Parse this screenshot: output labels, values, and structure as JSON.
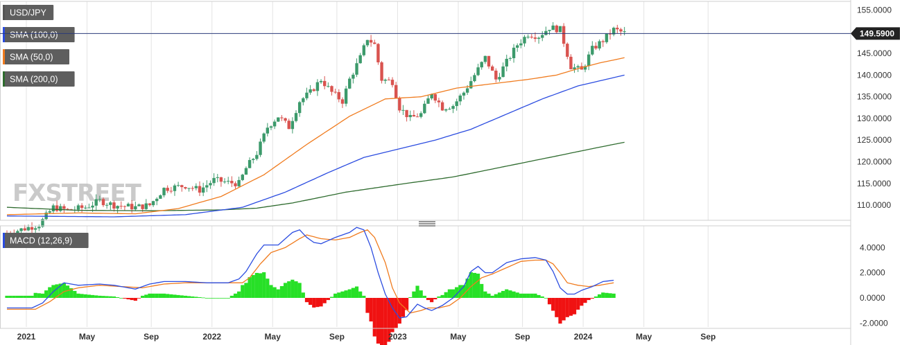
{
  "chart_data": [
    {
      "type": "candlestick",
      "title": "USD/JPY",
      "legend": [
        {
          "label": "USD/JPY",
          "color": "#555555"
        },
        {
          "label": "SMA (100,0)",
          "color": "#2b4ce0"
        },
        {
          "label": "SMA (50,0)",
          "color": "#f07b1e"
        },
        {
          "label": "SMA (200,0)",
          "color": "#2e6b2e"
        }
      ],
      "ylim": [
        106.5,
        157.0
      ],
      "yticks": [
        "155.0000",
        "150.0000",
        "145.0000",
        "140.0000",
        "135.0000",
        "130.0000",
        "125.0000",
        "120.0000",
        "115.0000",
        "110.0000"
      ],
      "ytick_values": [
        155,
        150,
        145,
        140,
        135,
        130,
        125,
        120,
        115,
        110
      ],
      "last_price": "149.5900",
      "last_price_value": 149.59,
      "price_keypoints": [
        [
          0,
          103.5
        ],
        [
          9,
          105.5
        ],
        [
          13,
          109.5
        ],
        [
          17,
          108.8
        ],
        [
          22,
          109.5
        ],
        [
          26,
          111.0
        ],
        [
          30,
          110.0
        ],
        [
          36,
          109.5
        ],
        [
          40,
          110.0
        ],
        [
          44,
          113.8
        ],
        [
          50,
          114.5
        ],
        [
          54,
          113.5
        ],
        [
          58,
          115.8
        ],
        [
          62,
          115.2
        ],
        [
          65,
          115.0
        ],
        [
          67,
          118.5
        ],
        [
          70,
          122.0
        ],
        [
          73,
          128.0
        ],
        [
          76,
          130.5
        ],
        [
          79,
          128.0
        ],
        [
          82,
          134.0
        ],
        [
          85,
          136.0
        ],
        [
          88,
          139.0
        ],
        [
          91,
          136.0
        ],
        [
          94,
          134.0
        ],
        [
          96,
          139.0
        ],
        [
          99,
          144.0
        ],
        [
          101,
          148.5
        ],
        [
          103,
          147.0
        ],
        [
          105,
          139.0
        ],
        [
          108,
          138.5
        ],
        [
          110,
          132.5
        ],
        [
          113,
          130.0
        ],
        [
          116,
          131.0
        ],
        [
          119,
          136.0
        ],
        [
          122,
          132.5
        ],
        [
          125,
          133.0
        ],
        [
          128,
          136.0
        ],
        [
          131,
          140.0
        ],
        [
          134,
          144.0
        ],
        [
          137,
          139.0
        ],
        [
          140,
          143.0
        ],
        [
          143,
          147.0
        ],
        [
          146,
          149.5
        ],
        [
          149,
          149.0
        ],
        [
          152,
          151.0
        ],
        [
          155,
          150.5
        ],
        [
          158,
          142.0
        ],
        [
          161,
          141.0
        ],
        [
          164,
          146.0
        ],
        [
          167,
          148.0
        ],
        [
          170,
          150.5
        ],
        [
          173,
          149.7
        ]
      ],
      "sma50_keypoints": [
        [
          0,
          107.8
        ],
        [
          20,
          108.2
        ],
        [
          36,
          108.0
        ],
        [
          48,
          109.2
        ],
        [
          60,
          112.0
        ],
        [
          72,
          117.0
        ],
        [
          84,
          124.0
        ],
        [
          96,
          130.5
        ],
        [
          106,
          134.5
        ],
        [
          116,
          135.0
        ],
        [
          126,
          137.0
        ],
        [
          136,
          138.0
        ],
        [
          146,
          139.0
        ],
        [
          154,
          140.0
        ],
        [
          160,
          141.5
        ],
        [
          166,
          142.8
        ],
        [
          173,
          144.0
        ]
      ],
      "sma100_keypoints": [
        [
          0,
          107.5
        ],
        [
          30,
          107.3
        ],
        [
          50,
          107.8
        ],
        [
          66,
          109.5
        ],
        [
          78,
          113.0
        ],
        [
          90,
          117.5
        ],
        [
          100,
          121.0
        ],
        [
          110,
          123.0
        ],
        [
          120,
          125.0
        ],
        [
          130,
          127.5
        ],
        [
          140,
          131.0
        ],
        [
          150,
          134.5
        ],
        [
          160,
          137.5
        ],
        [
          173,
          140.0
        ]
      ],
      "sma200_keypoints": [
        [
          0,
          109.5
        ],
        [
          20,
          108.8
        ],
        [
          40,
          108.7
        ],
        [
          60,
          108.9
        ],
        [
          70,
          109.3
        ],
        [
          80,
          110.5
        ],
        [
          95,
          113.0
        ],
        [
          110,
          114.8
        ],
        [
          125,
          116.5
        ],
        [
          140,
          119.0
        ],
        [
          155,
          121.5
        ],
        [
          165,
          123.2
        ],
        [
          173,
          124.5
        ]
      ],
      "x_ticks": [
        {
          "label": "2021",
          "index": 0
        },
        {
          "label": "May",
          "index": 17
        },
        {
          "label": "Sep",
          "index": 35
        },
        {
          "label": "2022",
          "index": 52
        },
        {
          "label": "May",
          "index": 69
        },
        {
          "label": "Sep",
          "index": 87
        },
        {
          "label": "2023",
          "index": 104
        },
        {
          "label": "May",
          "index": 121
        },
        {
          "label": "Sep",
          "index": 139
        },
        {
          "label": "2024",
          "index": 156
        },
        {
          "label": "May",
          "index": 173
        },
        {
          "label": "Sep",
          "index": 191
        }
      ],
      "watermark": "FXSTREET"
    },
    {
      "type": "macd",
      "title": "MACD (12,26,9)",
      "legend": [
        {
          "label": "MACD (12,26,9)",
          "color": "#2b4ce0"
        }
      ],
      "ylim": [
        -2.2,
        5.5
      ],
      "yticks": [
        "4.0000",
        "2.0000",
        "0.0000",
        "-2.0000"
      ],
      "ytick_values": [
        4,
        2,
        0,
        -2
      ],
      "macd_keypoints": [
        [
          0,
          -0.8
        ],
        [
          7,
          -0.8
        ],
        [
          10,
          -0.4
        ],
        [
          13,
          0.5
        ],
        [
          16,
          1.2
        ],
        [
          20,
          1.0
        ],
        [
          26,
          1.1
        ],
        [
          30,
          1.0
        ],
        [
          36,
          0.7
        ],
        [
          40,
          1.1
        ],
        [
          44,
          1.3
        ],
        [
          50,
          1.3
        ],
        [
          56,
          1.2
        ],
        [
          62,
          1.2
        ],
        [
          65,
          1.5
        ],
        [
          67,
          2.1
        ],
        [
          70,
          3.5
        ],
        [
          72,
          4.2
        ],
        [
          76,
          4.2
        ],
        [
          80,
          5.2
        ],
        [
          82,
          5.4
        ],
        [
          84,
          4.8
        ],
        [
          86,
          4.4
        ],
        [
          88,
          4.3
        ],
        [
          92,
          4.8
        ],
        [
          96,
          5.2
        ],
        [
          98,
          5.6
        ],
        [
          100,
          5.4
        ],
        [
          102,
          4.0
        ],
        [
          104,
          2.0
        ],
        [
          106,
          0.3
        ],
        [
          108,
          -0.8
        ],
        [
          110,
          -1.6
        ],
        [
          112,
          -1.5
        ],
        [
          115,
          -0.5
        ],
        [
          117,
          -0.8
        ],
        [
          119,
          -1.0
        ],
        [
          122,
          -0.6
        ],
        [
          125,
          0.0
        ],
        [
          128,
          0.9
        ],
        [
          130,
          2.1
        ],
        [
          132,
          2.5
        ],
        [
          134,
          2.0
        ],
        [
          136,
          2.0
        ],
        [
          140,
          2.8
        ],
        [
          144,
          3.1
        ],
        [
          148,
          3.2
        ],
        [
          151,
          3.0
        ],
        [
          153,
          2.1
        ],
        [
          155,
          0.8
        ],
        [
          157,
          0.3
        ],
        [
          159,
          0.3
        ],
        [
          161,
          0.6
        ],
        [
          164,
          0.9
        ],
        [
          167,
          1.3
        ],
        [
          170,
          1.4
        ]
      ],
      "signal_keypoints": [
        [
          0,
          -0.9
        ],
        [
          8,
          -0.9
        ],
        [
          12,
          -0.3
        ],
        [
          16,
          0.5
        ],
        [
          20,
          0.8
        ],
        [
          26,
          1.0
        ],
        [
          32,
          0.9
        ],
        [
          38,
          0.8
        ],
        [
          44,
          1.1
        ],
        [
          50,
          1.2
        ],
        [
          56,
          1.2
        ],
        [
          62,
          1.2
        ],
        [
          66,
          1.2
        ],
        [
          68,
          1.6
        ],
        [
          71,
          2.7
        ],
        [
          74,
          3.6
        ],
        [
          78,
          4.0
        ],
        [
          82,
          4.7
        ],
        [
          84,
          5.0
        ],
        [
          88,
          4.7
        ],
        [
          92,
          4.6
        ],
        [
          96,
          4.8
        ],
        [
          99,
          5.2
        ],
        [
          101,
          5.4
        ],
        [
          103,
          4.8
        ],
        [
          106,
          2.8
        ],
        [
          108,
          0.8
        ],
        [
          110,
          -0.4
        ],
        [
          113,
          -1.2
        ],
        [
          116,
          -1.0
        ],
        [
          118,
          -0.8
        ],
        [
          121,
          -0.8
        ],
        [
          124,
          -0.6
        ],
        [
          127,
          0.0
        ],
        [
          130,
          0.9
        ],
        [
          133,
          1.6
        ],
        [
          136,
          1.9
        ],
        [
          140,
          2.4
        ],
        [
          144,
          2.9
        ],
        [
          148,
          3.0
        ],
        [
          151,
          3.0
        ],
        [
          153,
          2.7
        ],
        [
          155,
          2.0
        ],
        [
          157,
          1.2
        ],
        [
          160,
          1.0
        ],
        [
          163,
          0.9
        ],
        [
          166,
          1.0
        ],
        [
          170,
          1.2
        ]
      ]
    }
  ]
}
